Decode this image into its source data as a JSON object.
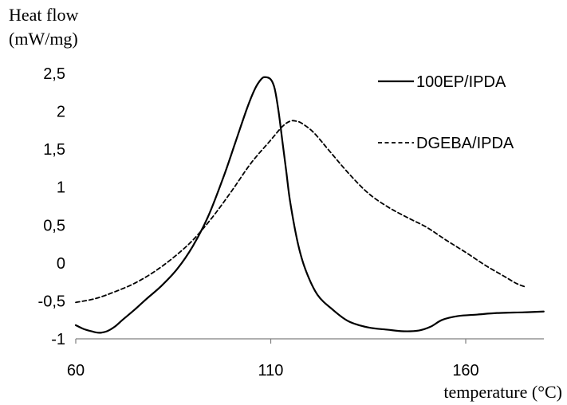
{
  "chart_data": {
    "type": "line",
    "ylabel_line1": "Heat flow",
    "ylabel_line2": "(mW/mg)",
    "xlabel": "temperature  (°C)",
    "xlim": [
      60,
      180
    ],
    "ylim": [
      -1,
      2.5
    ],
    "x_ticks": [
      {
        "value": 60,
        "label": "60"
      },
      {
        "value": 110,
        "label": "110"
      },
      {
        "value": 160,
        "label": "160"
      }
    ],
    "y_ticks": [
      {
        "value": 2.5,
        "label": "2,5"
      },
      {
        "value": 2,
        "label": "2"
      },
      {
        "value": 1.5,
        "label": "1,5"
      },
      {
        "value": 1,
        "label": "1"
      },
      {
        "value": 0.5,
        "label": "0,5"
      },
      {
        "value": 0,
        "label": "0"
      },
      {
        "value": -0.5,
        "label": "-0,5"
      },
      {
        "value": -1,
        "label": "-1"
      }
    ],
    "grid": false,
    "legend_position": "top-right",
    "series": [
      {
        "name": "100EP/IPDA",
        "line_style": "solid",
        "color": "#000000",
        "points": [
          [
            60,
            -0.82
          ],
          [
            62,
            -0.87
          ],
          [
            64,
            -0.9
          ],
          [
            66,
            -0.92
          ],
          [
            68,
            -0.9
          ],
          [
            70,
            -0.84
          ],
          [
            72,
            -0.75
          ],
          [
            75,
            -0.62
          ],
          [
            78,
            -0.48
          ],
          [
            82,
            -0.3
          ],
          [
            86,
            -0.08
          ],
          [
            90,
            0.22
          ],
          [
            94,
            0.62
          ],
          [
            98,
            1.15
          ],
          [
            101,
            1.6
          ],
          [
            104,
            2.05
          ],
          [
            106,
            2.3
          ],
          [
            107.5,
            2.42
          ],
          [
            108.5,
            2.45
          ],
          [
            110,
            2.42
          ],
          [
            111,
            2.3
          ],
          [
            112,
            2.0
          ],
          [
            113,
            1.6
          ],
          [
            114,
            1.2
          ],
          [
            115,
            0.8
          ],
          [
            117,
            0.25
          ],
          [
            119,
            -0.1
          ],
          [
            122,
            -0.42
          ],
          [
            126,
            -0.62
          ],
          [
            130,
            -0.77
          ],
          [
            135,
            -0.85
          ],
          [
            140,
            -0.88
          ],
          [
            144,
            -0.9
          ],
          [
            148,
            -0.89
          ],
          [
            151,
            -0.84
          ],
          [
            154,
            -0.75
          ],
          [
            158,
            -0.7
          ],
          [
            163,
            -0.68
          ],
          [
            168,
            -0.66
          ],
          [
            175,
            -0.65
          ],
          [
            180,
            -0.64
          ]
        ]
      },
      {
        "name": "DGEBA/IPDA",
        "line_style": "dashed",
        "color": "#000000",
        "points": [
          [
            60,
            -0.52
          ],
          [
            65,
            -0.47
          ],
          [
            70,
            -0.38
          ],
          [
            75,
            -0.27
          ],
          [
            80,
            -0.12
          ],
          [
            85,
            0.07
          ],
          [
            90,
            0.3
          ],
          [
            95,
            0.6
          ],
          [
            100,
            0.95
          ],
          [
            105,
            1.32
          ],
          [
            110,
            1.62
          ],
          [
            113,
            1.8
          ],
          [
            115,
            1.87
          ],
          [
            116.5,
            1.87
          ],
          [
            118,
            1.84
          ],
          [
            121,
            1.72
          ],
          [
            125,
            1.48
          ],
          [
            130,
            1.18
          ],
          [
            135,
            0.92
          ],
          [
            140,
            0.74
          ],
          [
            145,
            0.6
          ],
          [
            150,
            0.47
          ],
          [
            155,
            0.3
          ],
          [
            160,
            0.14
          ],
          [
            165,
            -0.03
          ],
          [
            170,
            -0.18
          ],
          [
            173,
            -0.27
          ],
          [
            175,
            -0.31
          ]
        ]
      }
    ]
  }
}
